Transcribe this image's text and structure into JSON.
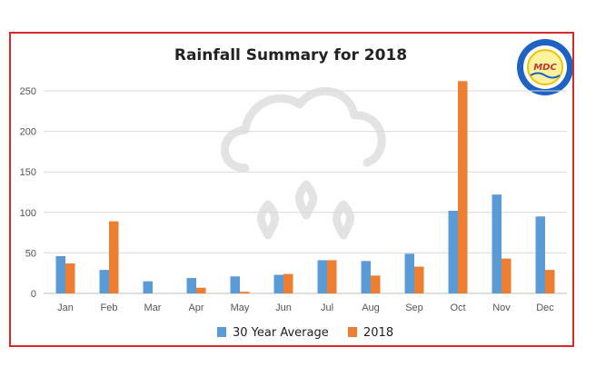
{
  "colors": {
    "series_avg": "#5b9bd5",
    "series_2018": "#ed7d31",
    "frame": "#d42a2a",
    "grid": "#d9d9d9",
    "watermark": "#e3e3e3"
  },
  "watermark_icon": "rain-cloud-icon",
  "logo_icon": "mdc-logo-icon",
  "logo_text": "MDC",
  "chart_data": {
    "type": "bar",
    "title": "Rainfall Summary for 2018",
    "categories": [
      "Jan",
      "Feb",
      "Mar",
      "Apr",
      "May",
      "Jun",
      "Jul",
      "Aug",
      "Sep",
      "Oct",
      "Nov",
      "Dec"
    ],
    "series": [
      {
        "name": "30 Year Average",
        "values": [
          46,
          29,
          15,
          19,
          21,
          23,
          41,
          40,
          49,
          102,
          122,
          95
        ]
      },
      {
        "name": "2018",
        "values": [
          37,
          89,
          0,
          7,
          2,
          24,
          41,
          22,
          33,
          262,
          43,
          29
        ]
      }
    ],
    "ylim": [
      0,
      250
    ],
    "yticks": [
      0,
      50,
      100,
      150,
      200,
      250
    ],
    "grid": true,
    "legend_position": "bottom",
    "xlabel": "",
    "ylabel": ""
  }
}
